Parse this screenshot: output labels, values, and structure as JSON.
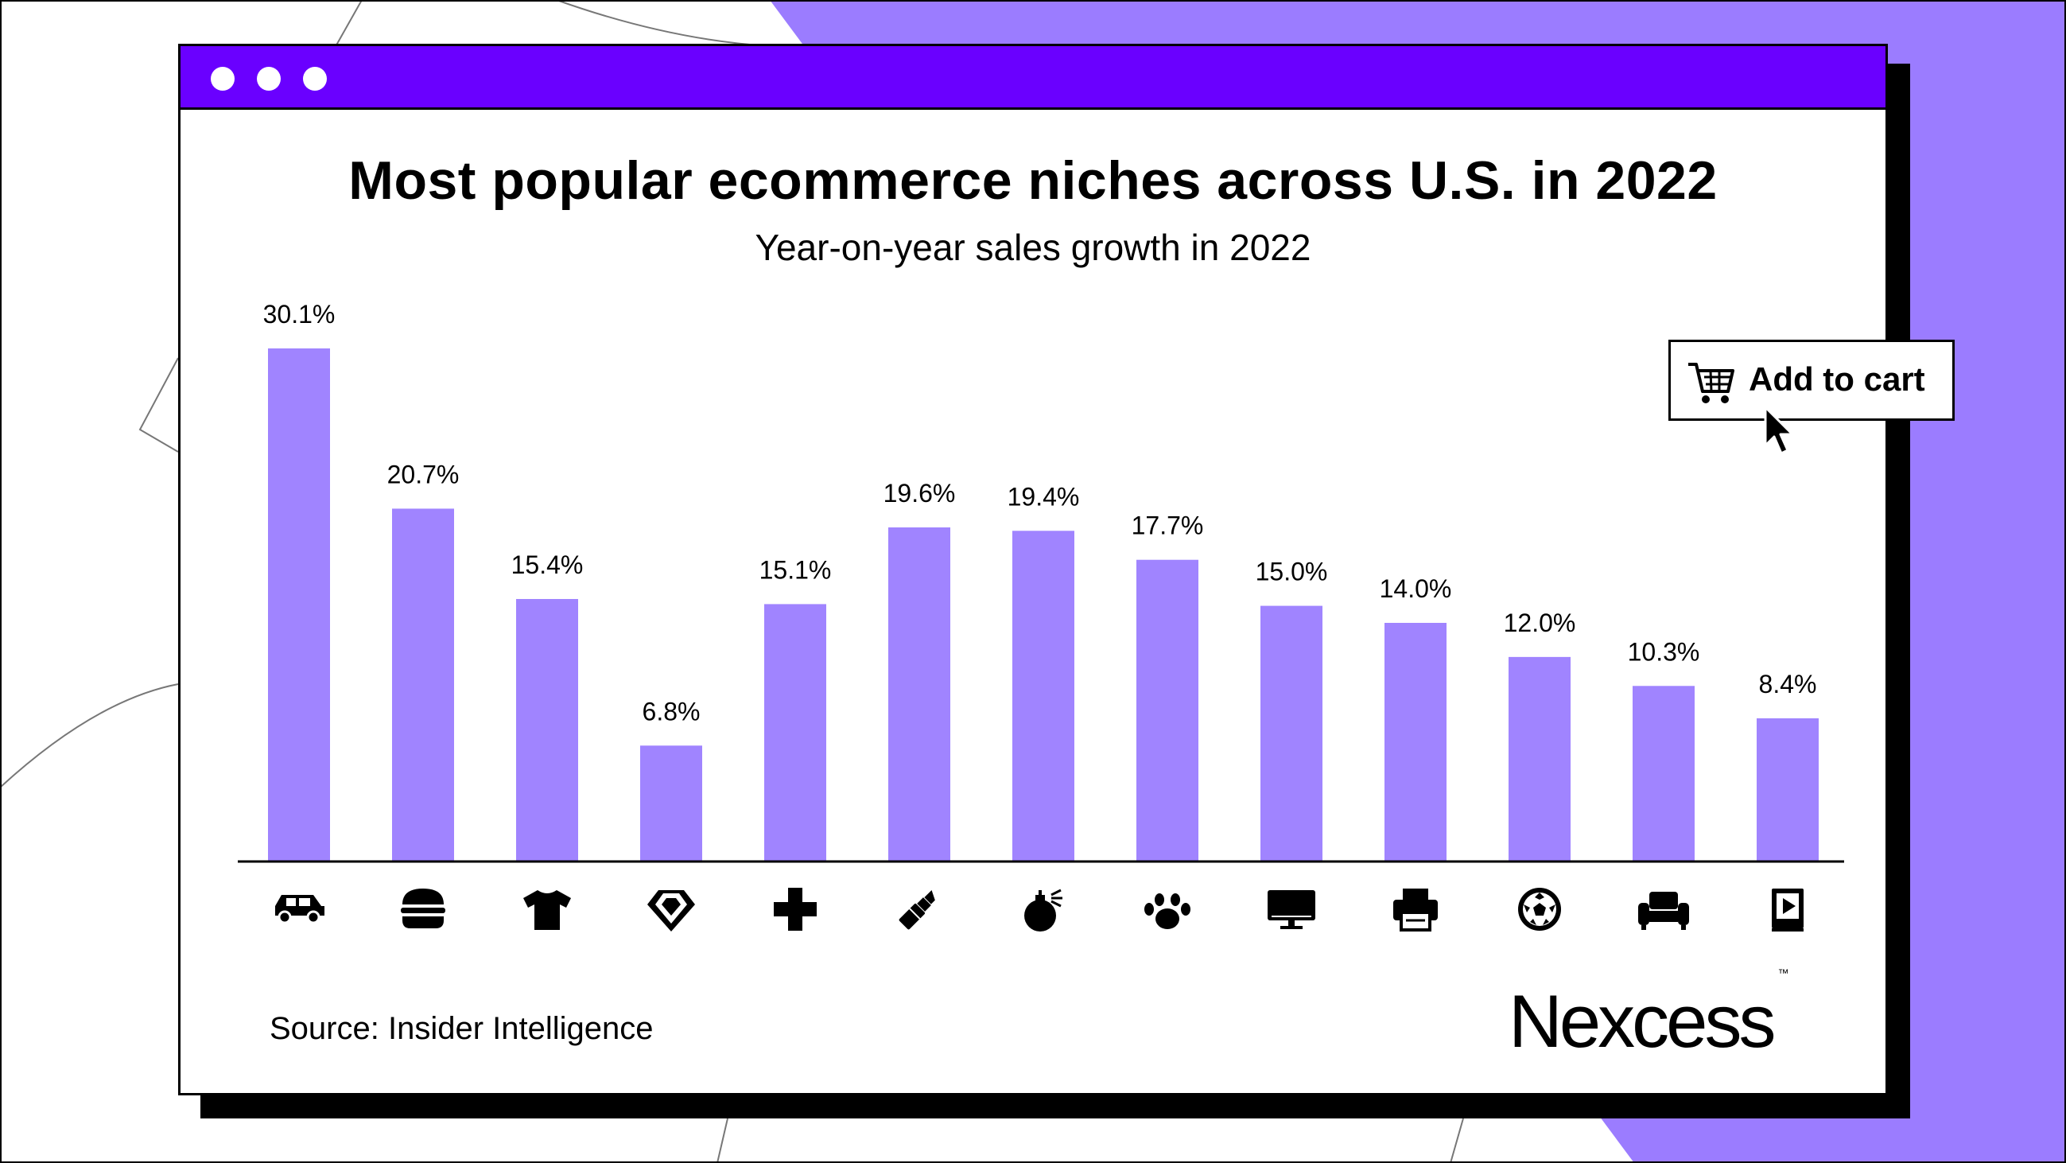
{
  "window": {
    "title_dots": 3
  },
  "chart_data": {
    "type": "bar",
    "title": "Most popular ecommerce niches across U.S. in 2022",
    "subtitle": "Year-on-year sales growth in 2022",
    "categories": [
      "car-icon",
      "burger-icon",
      "tshirt-icon",
      "gem-icon",
      "medical-cross-icon",
      "lipstick-icon",
      "perfume-icon",
      "paw-icon",
      "monitor-icon",
      "printer-icon",
      "soccer-ball-icon",
      "armchair-icon",
      "media-book-icon"
    ],
    "values": [
      30.1,
      20.7,
      15.4,
      6.8,
      15.1,
      19.6,
      19.4,
      17.7,
      15.0,
      14.0,
      12.0,
      10.3,
      8.4
    ],
    "value_labels": [
      "30.1%",
      "20.7%",
      "15.4%",
      "6.8%",
      "15.1%",
      "19.6%",
      "19.4%",
      "17.7%",
      "15.0%",
      "14.0%",
      "12.0%",
      "10.3%",
      "8.4%"
    ],
    "ylim": [
      0,
      30.1
    ],
    "grid": false,
    "bar_color": "#a084ff"
  },
  "source": "Source: Insider Intelligence",
  "brand": {
    "name": "Nexcess",
    "trademark": "™"
  },
  "cart_button": {
    "label": "Add to cart",
    "icon": "cart-icon"
  },
  "colors": {
    "accent_purple": "#6a00ff",
    "background_purple": "#9b7cff",
    "bar": "#a084ff"
  }
}
